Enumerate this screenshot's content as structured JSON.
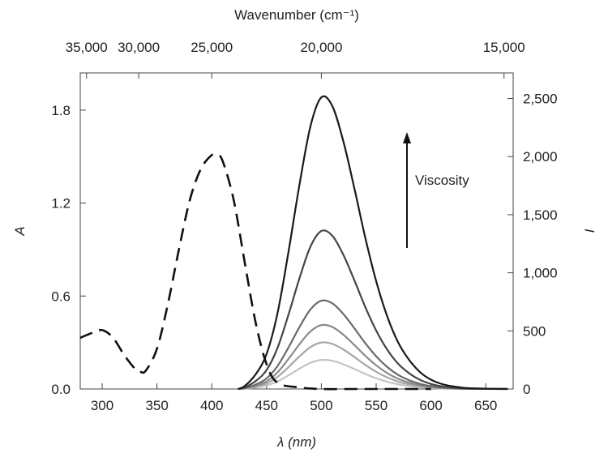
{
  "chart_data": {
    "type": "line",
    "title": "",
    "xlabel": "λ (nm)",
    "x_top_label": "Wavenumber (cm⁻¹)",
    "ylabel_left": "A",
    "ylabel_right": "I",
    "xlim": [
      280,
      675
    ],
    "ylim_left": [
      0,
      2.04
    ],
    "ylim_right": [
      0,
      2720
    ],
    "x_ticks": [
      300,
      350,
      400,
      450,
      500,
      550,
      600,
      650
    ],
    "x_tick_labels": [
      "300",
      "350",
      "400",
      "450",
      "500",
      "550",
      "600",
      "650"
    ],
    "top_ticks": [
      {
        "wavenumber": 35000,
        "label": "35,000"
      },
      {
        "wavenumber": 30000,
        "label": "30,000"
      },
      {
        "wavenumber": 25000,
        "label": "25,000"
      },
      {
        "wavenumber": 20000,
        "label": "20,000"
      },
      {
        "wavenumber": 15000,
        "label": "15,000"
      }
    ],
    "y_left_ticks": [
      0.0,
      0.6,
      1.2,
      1.8
    ],
    "y_left_tick_labels": [
      "0.0",
      "0.6",
      "1.2",
      "1.8"
    ],
    "y_right_ticks": [
      0,
      500,
      1000,
      1500,
      2000,
      2500
    ],
    "y_right_tick_labels": [
      "0",
      "500",
      "1,000",
      "1,500",
      "2,000",
      "2,500"
    ],
    "absorbance": {
      "axis": "left",
      "style": "dashed",
      "x": [
        280,
        290,
        300,
        310,
        320,
        330,
        335,
        340,
        350,
        360,
        370,
        380,
        390,
        400,
        405,
        410,
        420,
        430,
        440,
        450,
        460,
        480,
        500,
        530,
        560,
        600
      ],
      "y": [
        0.33,
        0.36,
        0.38,
        0.33,
        0.22,
        0.13,
        0.11,
        0.12,
        0.26,
        0.55,
        0.9,
        1.22,
        1.42,
        1.51,
        1.51,
        1.47,
        1.22,
        0.82,
        0.43,
        0.16,
        0.04,
        0.01,
        0.0,
        0.0,
        0.0,
        0.0
      ]
    },
    "emission": {
      "axis": "right",
      "peak_nm": 500,
      "onset_nm": 424,
      "x": [
        424,
        430,
        440,
        450,
        460,
        470,
        480,
        490,
        500,
        510,
        520,
        530,
        540,
        550,
        560,
        570,
        580,
        590,
        600,
        610,
        620,
        630,
        640,
        650,
        660,
        670
      ],
      "shape": [
        0.0,
        0.01,
        0.05,
        0.12,
        0.26,
        0.47,
        0.7,
        0.9,
        1.0,
        0.97,
        0.85,
        0.69,
        0.52,
        0.37,
        0.25,
        0.16,
        0.1,
        0.058,
        0.032,
        0.017,
        0.009,
        0.004,
        0.002,
        0.001,
        0.0005,
        0.0002
      ],
      "series": [
        {
          "peak": 2510,
          "color": "#1a1a1a"
        },
        {
          "peak": 1360,
          "color": "#444444"
        },
        {
          "peak": 760,
          "color": "#6a6a6a"
        },
        {
          "peak": 550,
          "color": "#8a8a8a"
        },
        {
          "peak": 400,
          "color": "#a6a6a6"
        },
        {
          "peak": 250,
          "color": "#c4c4c4"
        }
      ]
    },
    "annotation": {
      "text": "Viscosity",
      "arrow": "up"
    },
    "grid": false,
    "legend": "none"
  }
}
